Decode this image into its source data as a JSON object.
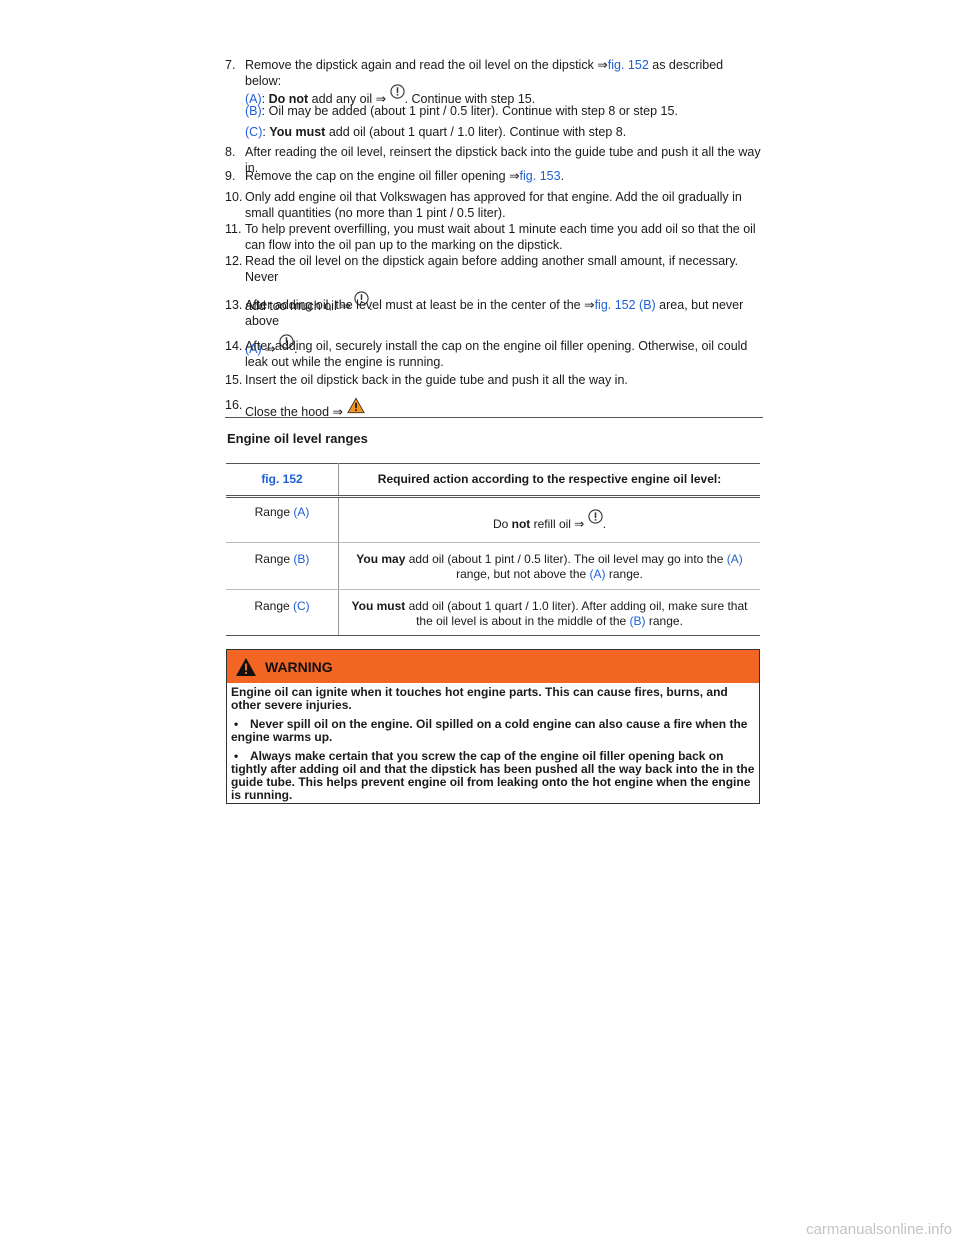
{
  "steps": {
    "s7": {
      "num": "7.",
      "text": "Remove the dipstick again and read the oil level on the dipstick ⇒",
      "link": "fig. 152",
      "tail": " as described below:"
    },
    "a": {
      "label": "(A)",
      "sep": ": ",
      "bold": "Do not",
      "text": " add any oil ⇒ ",
      "tail": ". Continue with step 15."
    },
    "b": {
      "label": "(B)",
      "text": ": Oil may be added (about 1 pint / 0.5 liter). Continue with step 8 or step 15."
    },
    "c": {
      "label": "(C)",
      "sep": ": ",
      "bold": "You must",
      "text": " add oil (about 1 quart / 1.0 liter). Continue with step 8."
    },
    "s8": {
      "num": "8.",
      "text": "After reading the oil level, reinsert the dipstick back into the guide tube and push it all the way in."
    },
    "s9": {
      "num": "9.",
      "text": "Remove the cap on the engine oil filler opening ⇒",
      "link": "fig. 153",
      "tail": "."
    },
    "s10": {
      "num": "10.",
      "text": "Only add engine oil that Volkswagen has approved for that engine. Add the oil gradually in small quantities (no more than 1 pint / 0.5 liter)."
    },
    "s11": {
      "num": "11.",
      "text": "To help prevent overfilling, you must wait about 1 minute each time you add oil so that the oil can flow into the oil pan up to the marking on the dipstick."
    },
    "s12": {
      "num": "12.",
      "text1": "Read the oil level on the dipstick again before adding another small amount, if necessary. Never",
      "text2": "add too much oil ⇒ ",
      "tail": "."
    },
    "s13": {
      "num": "13.",
      "text1": "After adding oil, the level must at least be in the center of the ⇒",
      "link": "fig. 152 (B)",
      "text1b": " area, but never above",
      "link2": "(A)",
      "text2": " ⇒ ",
      "tail": "."
    },
    "s14": {
      "num": "14.",
      "text": "After adding oil, securely install the cap on the engine oil filler opening. Otherwise, oil could leak out while the engine is running."
    },
    "s15": {
      "num": "15.",
      "text": "Insert the oil dipstick back in the guide tube and push it all the way in."
    },
    "s16": {
      "num": "16.",
      "text": "Close the hood ⇒ "
    }
  },
  "section": {
    "title": "Engine oil level ranges"
  },
  "table": {
    "head_fig": "fig. 152",
    "head_action": "Required action according to the respective engine oil level:",
    "rows": [
      {
        "range": "Range ",
        "range_link": "(A)",
        "pre": "Do ",
        "bold": "not",
        "text": " refill oil ⇒ ",
        "tail": "."
      },
      {
        "range": "Range ",
        "range_link": "(B)",
        "bold": "You may",
        "text": " add oil (about 1 pint / 0.5 liter). The oil level may go into the ",
        "link1": "(A)",
        "text2": " range, but not above the ",
        "link2": "(A)",
        "text3": " range."
      },
      {
        "range": "Range ",
        "range_link": "(C)",
        "bold": "You must",
        "text": " add oil (about 1 quart / 1.0 liter). After adding oil, make sure that the oil level is about in the middle of the ",
        "link1": "(B)",
        "text2": " range."
      }
    ]
  },
  "warning": {
    "title": "WARNING",
    "intro": "Engine oil can ignite when it touches hot engine parts. This can cause fires, burns, and other severe injuries.",
    "bullets": [
      "Never spill oil on the engine. Oil spilled on a cold engine can also cause a fire when the engine warms up.",
      "Always make certain that you screw the cap of the engine oil filler opening back on tightly after adding oil and that the dipstick has been pushed all the way back into the in the guide tube. This helps prevent engine oil from leaking onto the hot engine when the engine is running."
    ],
    "bullet_glyph": "•"
  },
  "footer": {
    "watermark": "carmanualsonline.info"
  },
  "colors": {
    "link": "#1f5fd6",
    "warning_header": "#f26522"
  },
  "icons": {
    "notice": "notice-circle-icon",
    "warning": "warning-triangle-icon"
  }
}
